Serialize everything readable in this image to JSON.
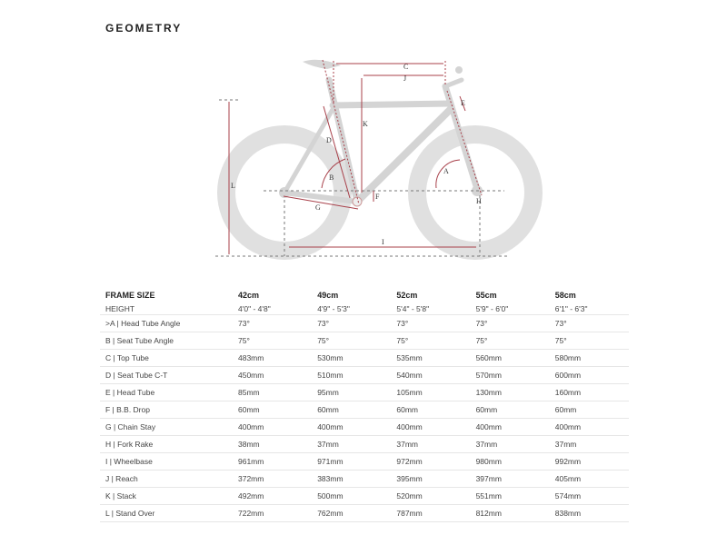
{
  "title": "GEOMETRY",
  "diagram_labels": [
    "A",
    "B",
    "C",
    "D",
    "E",
    "F",
    "G",
    "H",
    "I",
    "J",
    "K",
    "L"
  ],
  "colors": {
    "dimension": "#a8404a",
    "frame": "#d6d6d6",
    "wheel": "#e0e0e0"
  },
  "table": {
    "header": [
      "FRAME SIZE",
      "42cm",
      "49cm",
      "52cm",
      "55cm",
      "58cm"
    ],
    "rows": [
      [
        "HEIGHT",
        "4'0\" - 4'8\"",
        "4'9\" - 5'3\"",
        "5'4\" - 5'8\"",
        "5'9\" - 6'0\"",
        "6'1\" - 6'3\""
      ],
      [
        ">A | Head Tube Angle",
        "73°",
        "73°",
        "73°",
        "73°",
        "73°"
      ],
      [
        "B | Seat Tube Angle",
        "75°",
        "75°",
        "75°",
        "75°",
        "75°"
      ],
      [
        "C | Top Tube",
        "483mm",
        "530mm",
        "535mm",
        "560mm",
        "580mm"
      ],
      [
        "D | Seat Tube C-T",
        "450mm",
        "510mm",
        "540mm",
        "570mm",
        "600mm"
      ],
      [
        "E | Head Tube",
        "85mm",
        "95mm",
        "105mm",
        "130mm",
        "160mm"
      ],
      [
        "F | B.B. Drop",
        "60mm",
        "60mm",
        "60mm",
        "60mm",
        "60mm"
      ],
      [
        "G | Chain Stay",
        "400mm",
        "400mm",
        "400mm",
        "400mm",
        "400mm"
      ],
      [
        "H | Fork Rake",
        "38mm",
        "37mm",
        "37mm",
        "37mm",
        "37mm"
      ],
      [
        "I | Wheelbase",
        "961mm",
        "971mm",
        "972mm",
        "980mm",
        "992mm"
      ],
      [
        "J | Reach",
        "372mm",
        "383mm",
        "395mm",
        "397mm",
        "405mm"
      ],
      [
        "K | Stack",
        "492mm",
        "500mm",
        "520mm",
        "551mm",
        "574mm"
      ],
      [
        "L | Stand Over",
        "722mm",
        "762mm",
        "787mm",
        "812mm",
        "838mm"
      ]
    ]
  }
}
